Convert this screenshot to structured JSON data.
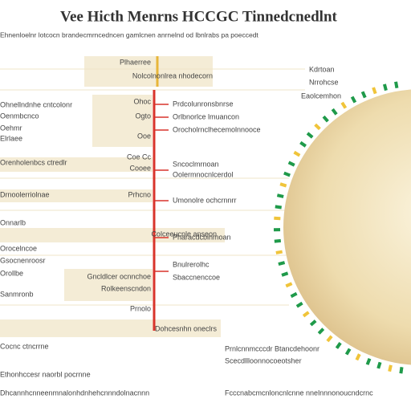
{
  "title": "Vee Hicth Menrns HCCGC Tinnedcnedlnt",
  "subtitle": "Ehnenloelnr lotcocn brandecmrncedncen gamlcnen anrnelnd od lbnlrabs pa poeccedt",
  "left_labels": [
    "Ohnellndnhe cntcolonr",
    "Oenmbcnco",
    "Oehmr",
    "Elrlaee",
    "Orenholenbcs ctredlr",
    "Drnoolerriolnae",
    "Onnarlb",
    "Orocelncoe",
    "Gsocnenroosr",
    "Orollbe",
    "Sanmronb",
    "Cocnc ctncrrne"
  ],
  "branch_labels": [
    "Plhaerree",
    "Nolcolnonlrea nhodecorn",
    "Ohoc",
    "Ogto",
    "Ooe",
    "Coe Cc",
    "Cooee",
    "Prhcno",
    "Colceeucnle anseon",
    "Gncldlcer ocnnchoe",
    "Rolkeenscndon",
    "Prnolo",
    "Dohcesnhn oneclrs"
  ],
  "center_labels": [
    "Prdcolunronsbnrse",
    "Orlbnorlce lmuancon",
    "Orocholrnclhecemolnnooce",
    "Sncoclmrnoan",
    "Oolermnocnlcerdol",
    "Umonolre ochcrnnrr",
    "Pharacdcbinmoan",
    "Bnulrerolhc",
    "Sbaccnenccoe"
  ],
  "circle_labels": [
    "Kdrtoan",
    "Nrrohcse",
    "Eaolcemhon"
  ],
  "footer": [
    "Prnlcnnmcccdr Btancdehoonr",
    "Scecdllloonnocoeotsher",
    "Ethonhccesr naorbl pocrnne",
    "Dhcannhcnneenmnalonhdnhehcnnndolnacnnn",
    "Fcccnabcmcnloncnlcnne nnelnnnonoucndcrnc"
  ]
}
